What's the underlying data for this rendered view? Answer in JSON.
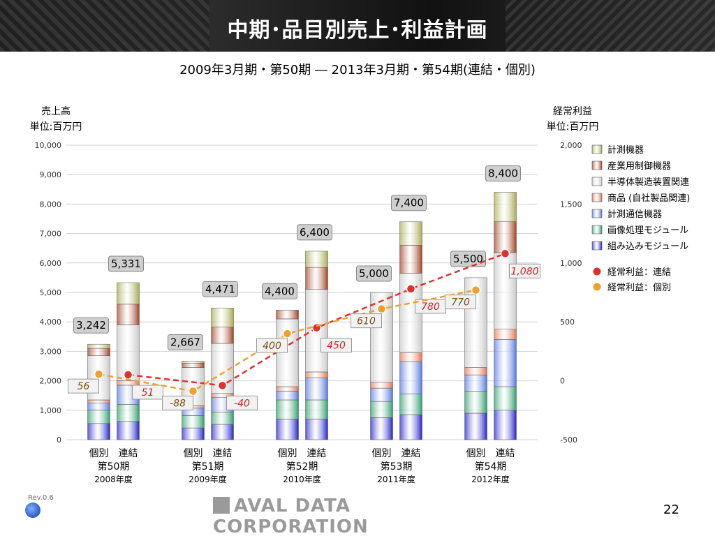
{
  "title": "中期･品目別売上･利益計画",
  "subtitle": "2009年3月期・第50期 ― 2013年3月期・第54期(連結・個別)",
  "footer": {
    "rev": "Rev.0.6",
    "brand": "AVAL DATA CORPORATION",
    "page": "22"
  },
  "chart_data": {
    "type": "bar",
    "left_axis": {
      "title": "売上高",
      "unit": "単位:百万円",
      "ylim": [
        0,
        10000
      ],
      "ticks": [
        "0",
        "1,000",
        "2,000",
        "3,000",
        "4,000",
        "5,000",
        "6,000",
        "7,000",
        "8,000",
        "9,000",
        "10,000"
      ]
    },
    "right_axis": {
      "title": "経常利益",
      "unit": "単位:百万円",
      "ylim": [
        -500,
        2000
      ],
      "ticks": [
        "-500",
        "0",
        "500",
        "1,000",
        "1,500",
        "2,000"
      ]
    },
    "grid": true,
    "legend_position": "right",
    "segment_names": [
      "組み込みモジュール",
      "画像処理モジュール",
      "計測通信機器",
      "商品 (自社製品関連)",
      "半導体製造装置関連",
      "産業用制御機器",
      "計測機器"
    ],
    "segment_colors": [
      "#2222cc",
      "#2e9e6e",
      "#5577dd",
      "#e07050",
      "#c8c8c8",
      "#a04020",
      "#a8a850"
    ],
    "groups": [
      {
        "period": "第50期",
        "year": "2008年度",
        "bars": [
          {
            "type": "個別",
            "total": 3242,
            "total_label": "3,242",
            "segments": [
              550,
              450,
              250,
              100,
              1500,
              250,
              142
            ]
          },
          {
            "type": "連結",
            "total": 5331,
            "total_label": "5,331",
            "segments": [
              620,
              580,
              650,
              150,
              1900,
              700,
              731
            ]
          }
        ]
      },
      {
        "period": "第51期",
        "year": "2009年度",
        "bars": [
          {
            "type": "個別",
            "total": 2667,
            "total_label": "2,667",
            "segments": [
              400,
              420,
              250,
              80,
              1300,
              150,
              67
            ]
          },
          {
            "type": "連結",
            "total": 4471,
            "total_label": "4,471",
            "segments": [
              520,
              420,
              500,
              130,
              1700,
              550,
              651
            ]
          }
        ]
      },
      {
        "period": "第52期",
        "year": "2010年度",
        "bars": [
          {
            "type": "個別",
            "total": 4400,
            "total_label": "4,400",
            "segments": [
              700,
              650,
              300,
              150,
              2300,
              300,
              0
            ]
          },
          {
            "type": "連結",
            "total": 6400,
            "total_label": "6,400",
            "segments": [
              700,
              650,
              750,
              200,
              2800,
              750,
              550
            ]
          }
        ]
      },
      {
        "period": "第53期",
        "year": "2011年度",
        "bars": [
          {
            "type": "個別",
            "total": 5000,
            "total_label": "5,000",
            "segments": [
              750,
              550,
              450,
              200,
              3050,
              0,
              0
            ]
          },
          {
            "type": "連結",
            "total": 7400,
            "total_label": "7,400",
            "segments": [
              850,
              700,
              1100,
              300,
              2700,
              950,
              800
            ]
          }
        ]
      },
      {
        "period": "第54期",
        "year": "2012年度",
        "bars": [
          {
            "type": "個別",
            "total": 5500,
            "total_label": "5,500",
            "segments": [
              900,
              750,
              550,
              250,
              3050,
              0,
              0
            ]
          },
          {
            "type": "連結",
            "total": 8400,
            "total_label": "8,400",
            "segments": [
              1000,
              800,
              1600,
              350,
              2600,
              1050,
              1000
            ]
          }
        ]
      }
    ],
    "lines": [
      {
        "name": "経常利益：連結",
        "color": "#e03030",
        "dash": true,
        "values": [
          51,
          -40,
          450,
          780,
          1080
        ],
        "labels": [
          "51",
          "-40",
          "450",
          "780",
          "1,080"
        ]
      },
      {
        "name": "経常利益：個別",
        "color": "#f0a030",
        "dash": true,
        "values": [
          56,
          -88,
          400,
          610,
          770
        ],
        "labels": [
          "56",
          "-88",
          "400",
          "610",
          "770"
        ]
      }
    ]
  }
}
